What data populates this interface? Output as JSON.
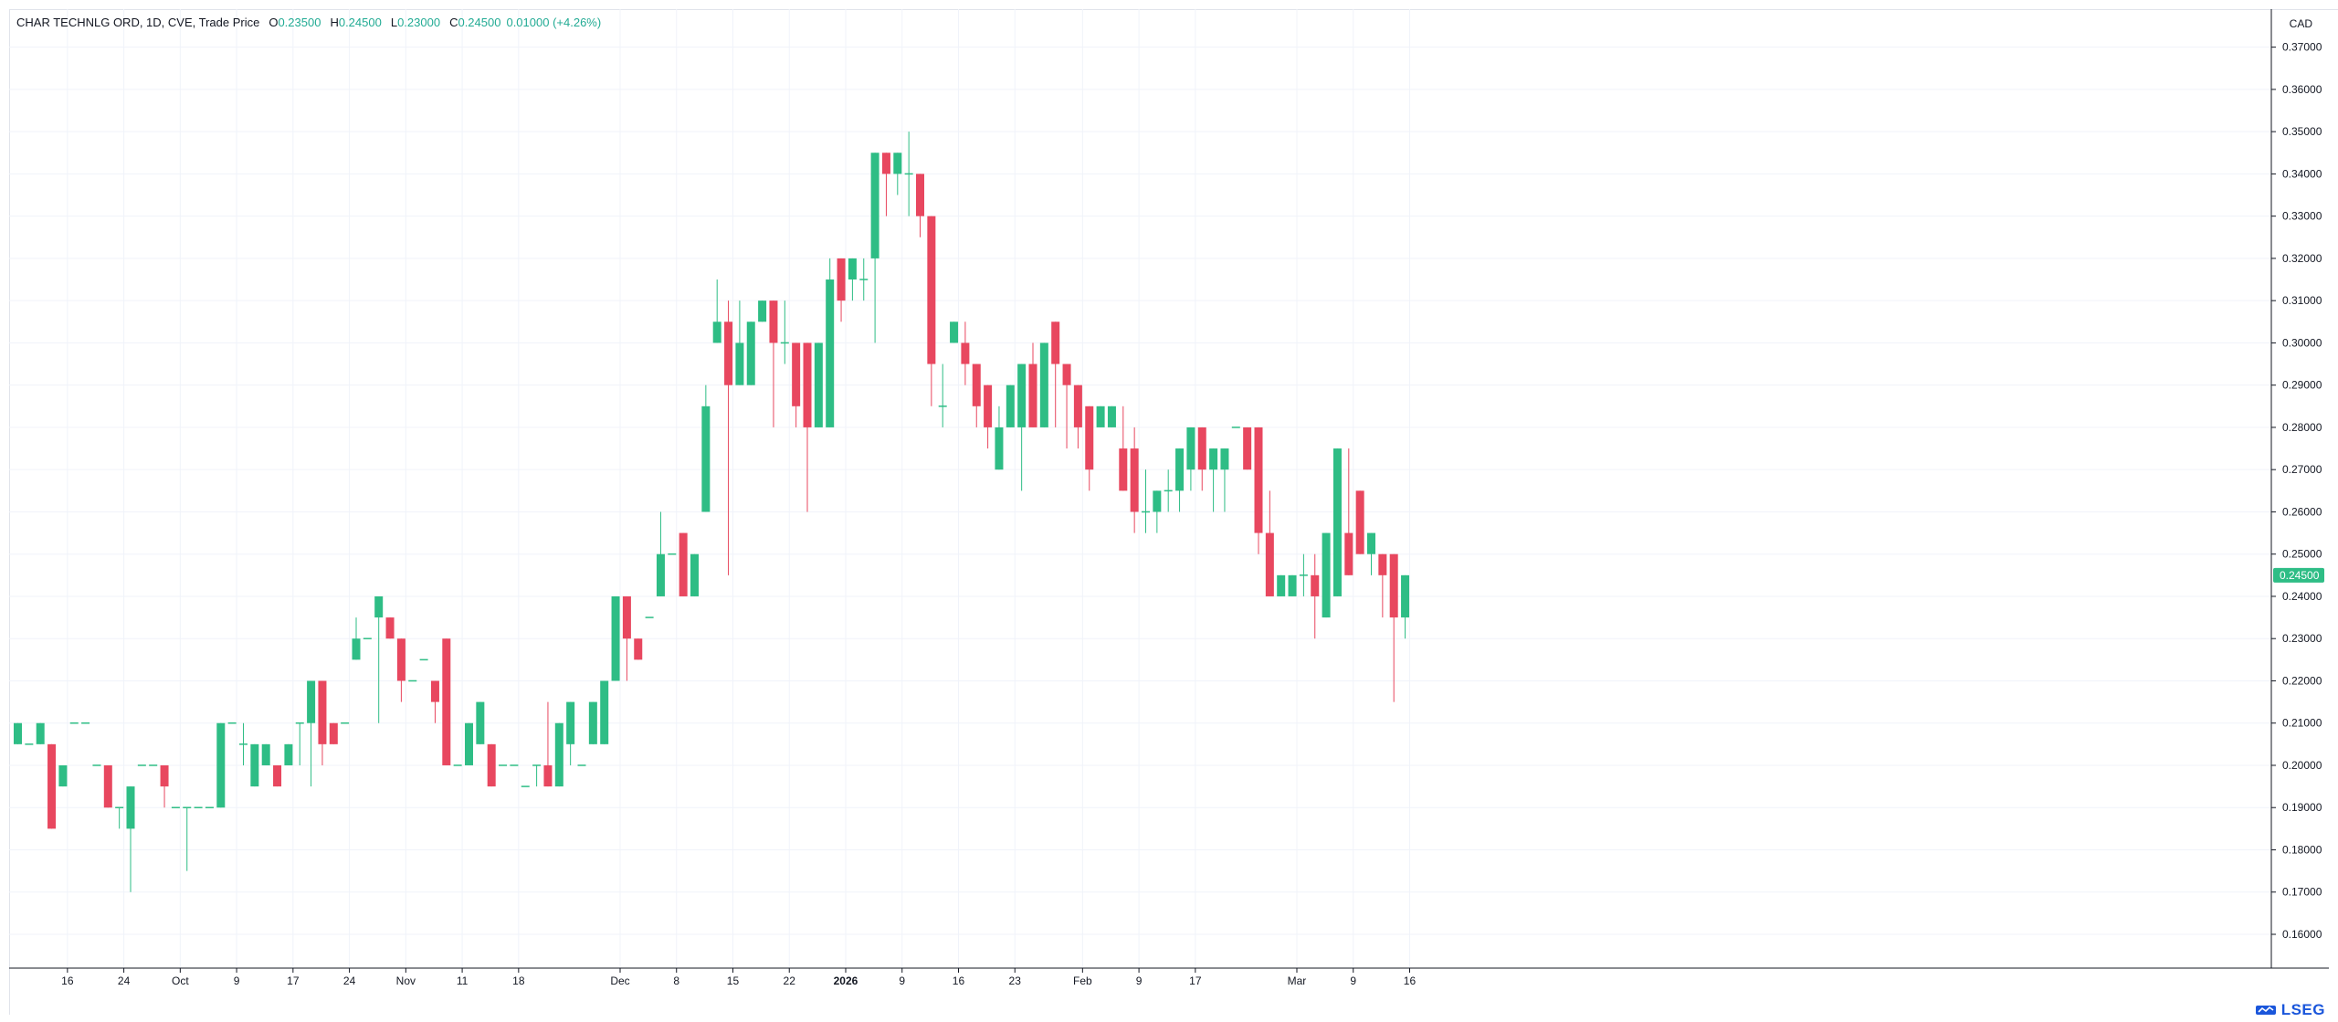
{
  "legend": {
    "title": "CHAR TECHNLG ORD, 1D, CVE, Trade Price",
    "o_label": "O",
    "o_value": "0.23500",
    "h_label": "H",
    "h_value": "0.24500",
    "l_label": "L",
    "l_value": "0.23000",
    "c_label": "C",
    "c_value": "0.24500",
    "change": "0.01000 (+4.26%)"
  },
  "currency": "CAD",
  "last_price_label": "0.24500",
  "logo_text": "LSEG",
  "colors": {
    "up": "#2ebd85",
    "down": "#e8475f",
    "grid": "#f0f3fa",
    "axis": "#131722"
  },
  "chart_data": {
    "type": "candlestick",
    "y_axis": {
      "ylim": [
        0.152,
        0.379
      ],
      "ticks": [
        "0.16000",
        "0.17000",
        "0.18000",
        "0.19000",
        "0.20000",
        "0.21000",
        "0.22000",
        "0.23000",
        "0.24000",
        "0.25000",
        "0.26000",
        "0.27000",
        "0.28000",
        "0.29000",
        "0.30000",
        "0.31000",
        "0.32000",
        "0.33000",
        "0.34000",
        "0.35000",
        "0.36000",
        "0.37000"
      ],
      "position": "right"
    },
    "x_axis": {
      "labels": [
        {
          "label": "16",
          "bar": 4.4
        },
        {
          "label": "24",
          "bar": 9.4
        },
        {
          "label": "Oct",
          "bar": 14.4
        },
        {
          "label": "9",
          "bar": 19.4
        },
        {
          "label": "17",
          "bar": 24.4
        },
        {
          "label": "24",
          "bar": 29.4
        },
        {
          "label": "Nov",
          "bar": 34.4
        },
        {
          "label": "11",
          "bar": 39.4
        },
        {
          "label": "18",
          "bar": 44.4
        },
        {
          "label": "Dec",
          "bar": 53.4
        },
        {
          "label": "8",
          "bar": 58.4
        },
        {
          "label": "15",
          "bar": 63.4
        },
        {
          "label": "22",
          "bar": 68.4
        },
        {
          "label": "2026",
          "bar": 73.4,
          "bold": true
        },
        {
          "label": "9",
          "bar": 78.4
        },
        {
          "label": "16",
          "bar": 83.4
        },
        {
          "label": "23",
          "bar": 88.4
        },
        {
          "label": "Feb",
          "bar": 94.4
        },
        {
          "label": "9",
          "bar": 99.4
        },
        {
          "label": "17",
          "bar": 104.4
        },
        {
          "label": "Mar",
          "bar": 113.4
        },
        {
          "label": "9",
          "bar": 118.4
        },
        {
          "label": "16",
          "bar": 123.4
        }
      ]
    },
    "grid": true,
    "candles": [
      [
        0.205,
        0.21,
        0.205,
        0.21
      ],
      [
        0.205,
        0.205,
        0.205,
        0.205
      ],
      [
        0.205,
        0.21,
        0.205,
        0.21
      ],
      [
        0.205,
        0.205,
        0.185,
        0.185
      ],
      [
        0.195,
        0.2,
        0.195,
        0.2
      ],
      [
        0.21,
        0.21,
        0.21,
        0.21
      ],
      [
        0.21,
        0.21,
        0.21,
        0.21
      ],
      [
        0.2,
        0.2,
        0.2,
        0.2
      ],
      [
        0.2,
        0.2,
        0.19,
        0.19
      ],
      [
        0.19,
        0.19,
        0.185,
        0.19
      ],
      [
        0.185,
        0.195,
        0.17,
        0.195
      ],
      [
        0.2,
        0.2,
        0.2,
        0.2
      ],
      [
        0.2,
        0.2,
        0.2,
        0.2
      ],
      [
        0.2,
        0.2,
        0.19,
        0.195
      ],
      [
        0.19,
        0.19,
        0.19,
        0.19
      ],
      [
        0.19,
        0.19,
        0.175,
        0.19
      ],
      [
        0.19,
        0.19,
        0.19,
        0.19
      ],
      [
        0.19,
        0.19,
        0.19,
        0.19
      ],
      [
        0.19,
        0.21,
        0.19,
        0.21
      ],
      [
        0.21,
        0.21,
        0.21,
        0.21
      ],
      [
        0.205,
        0.21,
        0.2,
        0.205
      ],
      [
        0.195,
        0.205,
        0.195,
        0.205
      ],
      [
        0.2,
        0.205,
        0.2,
        0.205
      ],
      [
        0.2,
        0.2,
        0.195,
        0.195
      ],
      [
        0.2,
        0.205,
        0.2,
        0.205
      ],
      [
        0.21,
        0.21,
        0.2,
        0.21
      ],
      [
        0.21,
        0.22,
        0.195,
        0.22
      ],
      [
        0.22,
        0.22,
        0.2,
        0.205
      ],
      [
        0.21,
        0.21,
        0.205,
        0.205
      ],
      [
        0.21,
        0.21,
        0.21,
        0.21
      ],
      [
        0.225,
        0.235,
        0.225,
        0.23
      ],
      [
        0.23,
        0.23,
        0.23,
        0.23
      ],
      [
        0.235,
        0.24,
        0.21,
        0.24
      ],
      [
        0.235,
        0.235,
        0.23,
        0.23
      ],
      [
        0.23,
        0.23,
        0.215,
        0.22
      ],
      [
        0.22,
        0.22,
        0.22,
        0.22
      ],
      [
        0.225,
        0.225,
        0.225,
        0.225
      ],
      [
        0.22,
        0.22,
        0.21,
        0.215
      ],
      [
        0.23,
        0.23,
        0.2,
        0.2
      ],
      [
        0.2,
        0.2,
        0.2,
        0.2
      ],
      [
        0.2,
        0.21,
        0.2,
        0.21
      ],
      [
        0.205,
        0.215,
        0.205,
        0.215
      ],
      [
        0.205,
        0.205,
        0.195,
        0.195
      ],
      [
        0.2,
        0.2,
        0.2,
        0.2
      ],
      [
        0.2,
        0.2,
        0.2,
        0.2
      ],
      [
        0.195,
        0.195,
        0.195,
        0.195
      ],
      [
        0.2,
        0.2,
        0.195,
        0.2
      ],
      [
        0.2,
        0.215,
        0.195,
        0.195
      ],
      [
        0.195,
        0.21,
        0.195,
        0.21
      ],
      [
        0.205,
        0.215,
        0.2,
        0.215
      ],
      [
        0.2,
        0.2,
        0.2,
        0.2
      ],
      [
        0.205,
        0.215,
        0.205,
        0.215
      ],
      [
        0.205,
        0.22,
        0.205,
        0.22
      ],
      [
        0.22,
        0.24,
        0.22,
        0.24
      ],
      [
        0.24,
        0.24,
        0.22,
        0.23
      ],
      [
        0.23,
        0.23,
        0.225,
        0.225
      ],
      [
        0.235,
        0.235,
        0.235,
        0.235
      ],
      [
        0.24,
        0.26,
        0.24,
        0.25
      ],
      [
        0.25,
        0.25,
        0.25,
        0.25
      ],
      [
        0.255,
        0.255,
        0.24,
        0.24
      ],
      [
        0.24,
        0.25,
        0.24,
        0.25
      ],
      [
        0.26,
        0.29,
        0.26,
        0.285
      ],
      [
        0.3,
        0.315,
        0.3,
        0.305
      ],
      [
        0.305,
        0.31,
        0.245,
        0.29
      ],
      [
        0.29,
        0.31,
        0.29,
        0.3
      ],
      [
        0.29,
        0.305,
        0.29,
        0.305
      ],
      [
        0.305,
        0.31,
        0.305,
        0.31
      ],
      [
        0.31,
        0.31,
        0.28,
        0.3
      ],
      [
        0.3,
        0.31,
        0.295,
        0.3
      ],
      [
        0.3,
        0.3,
        0.28,
        0.285
      ],
      [
        0.3,
        0.3,
        0.26,
        0.28
      ],
      [
        0.28,
        0.3,
        0.28,
        0.3
      ],
      [
        0.28,
        0.32,
        0.28,
        0.315
      ],
      [
        0.32,
        0.32,
        0.305,
        0.31
      ],
      [
        0.315,
        0.32,
        0.31,
        0.32
      ],
      [
        0.315,
        0.32,
        0.31,
        0.315
      ],
      [
        0.32,
        0.345,
        0.3,
        0.345
      ],
      [
        0.345,
        0.345,
        0.33,
        0.34
      ],
      [
        0.34,
        0.345,
        0.335,
        0.345
      ],
      [
        0.34,
        0.35,
        0.33,
        0.34
      ],
      [
        0.34,
        0.34,
        0.325,
        0.33
      ],
      [
        0.33,
        0.33,
        0.285,
        0.295
      ],
      [
        0.285,
        0.295,
        0.28,
        0.285
      ],
      [
        0.3,
        0.305,
        0.3,
        0.305
      ],
      [
        0.3,
        0.305,
        0.29,
        0.295
      ],
      [
        0.295,
        0.295,
        0.28,
        0.285
      ],
      [
        0.29,
        0.29,
        0.275,
        0.28
      ],
      [
        0.27,
        0.285,
        0.27,
        0.28
      ],
      [
        0.28,
        0.29,
        0.28,
        0.29
      ],
      [
        0.28,
        0.295,
        0.265,
        0.295
      ],
      [
        0.295,
        0.3,
        0.28,
        0.28
      ],
      [
        0.28,
        0.3,
        0.28,
        0.3
      ],
      [
        0.305,
        0.305,
        0.28,
        0.295
      ],
      [
        0.295,
        0.295,
        0.275,
        0.29
      ],
      [
        0.29,
        0.29,
        0.275,
        0.28
      ],
      [
        0.285,
        0.285,
        0.265,
        0.27
      ],
      [
        0.28,
        0.285,
        0.28,
        0.285
      ],
      [
        0.28,
        0.285,
        0.28,
        0.285
      ],
      [
        0.275,
        0.285,
        0.265,
        0.265
      ],
      [
        0.275,
        0.28,
        0.255,
        0.26
      ],
      [
        0.26,
        0.27,
        0.255,
        0.26
      ],
      [
        0.26,
        0.265,
        0.255,
        0.265
      ],
      [
        0.265,
        0.27,
        0.26,
        0.265
      ],
      [
        0.265,
        0.275,
        0.26,
        0.275
      ],
      [
        0.27,
        0.28,
        0.265,
        0.28
      ],
      [
        0.28,
        0.28,
        0.265,
        0.27
      ],
      [
        0.27,
        0.275,
        0.26,
        0.275
      ],
      [
        0.27,
        0.275,
        0.26,
        0.275
      ],
      [
        0.28,
        0.28,
        0.28,
        0.28
      ],
      [
        0.28,
        0.28,
        0.27,
        0.27
      ],
      [
        0.28,
        0.28,
        0.25,
        0.255
      ],
      [
        0.255,
        0.265,
        0.24,
        0.24
      ],
      [
        0.24,
        0.245,
        0.24,
        0.245
      ],
      [
        0.24,
        0.245,
        0.24,
        0.245
      ],
      [
        0.245,
        0.25,
        0.24,
        0.245
      ],
      [
        0.245,
        0.25,
        0.23,
        0.24
      ],
      [
        0.235,
        0.255,
        0.235,
        0.255
      ],
      [
        0.24,
        0.275,
        0.24,
        0.275
      ],
      [
        0.255,
        0.275,
        0.245,
        0.245
      ],
      [
        0.265,
        0.265,
        0.25,
        0.25
      ],
      [
        0.25,
        0.255,
        0.245,
        0.255
      ],
      [
        0.25,
        0.25,
        0.235,
        0.245
      ],
      [
        0.25,
        0.25,
        0.215,
        0.235
      ],
      [
        0.235,
        0.245,
        0.23,
        0.245
      ]
    ],
    "last_price": 0.245
  }
}
